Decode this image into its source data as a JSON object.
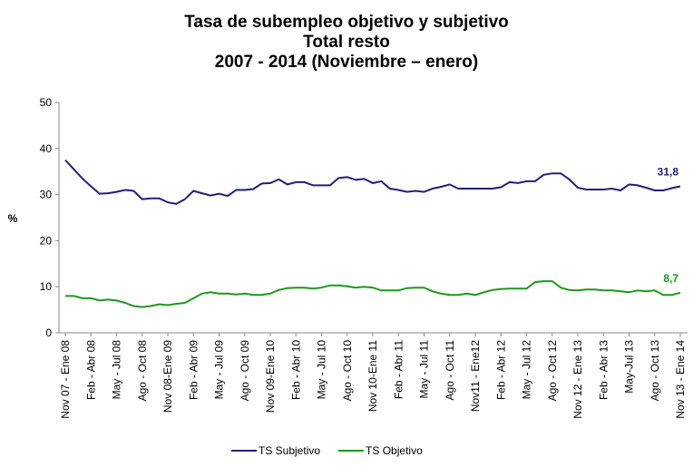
{
  "chart_data": {
    "type": "line",
    "title": "Tasa de subempleo objetivo y subjetivo",
    "subtitle": "Total resto",
    "period": "2007 - 2014 (Noviembre – enero)",
    "y_label": "%",
    "categories": [
      "Nov 07 - Ene 08",
      null,
      null,
      "Feb - Abr 08",
      null,
      null,
      "May - Jul 08",
      null,
      null,
      "Ago - Oct 08",
      null,
      null,
      "Nov 08-Ene 09",
      null,
      null,
      "Feb - Abr 09",
      null,
      null,
      "May - Jul 09",
      null,
      null,
      "Ago - Oct 09",
      null,
      null,
      "Nov 09-Ene 10",
      null,
      null,
      "Feb - Abr 10",
      null,
      null,
      "May - Jul 10",
      null,
      null,
      "Ago - Oct 10",
      null,
      null,
      "Nov 10-Ene 11",
      null,
      null,
      "Feb - Abr 11",
      null,
      null,
      "May - Jul 11",
      null,
      null,
      "Ago - Oct 11",
      null,
      null,
      "Nov11 - Ene12",
      null,
      null,
      "Feb - Abr 12",
      null,
      null,
      "May - Jul 12",
      null,
      null,
      "Ago - Oct 12",
      null,
      null,
      "Nov 12 - Ene 13",
      null,
      null,
      "Feb - Abr 13",
      null,
      null,
      "May-Jul 13",
      null,
      null,
      "Ago - Oct 13",
      null,
      null,
      "Nov 13 - Ene 14"
    ],
    "series": [
      {
        "name": "TS Subjetivo",
        "color": "#1f1f7a",
        "values": [
          37.5,
          35.5,
          33.5,
          31.8,
          30.2,
          30.3,
          30.6,
          31.0,
          30.8,
          29.0,
          29.2,
          29.2,
          28.3,
          28.0,
          29.0,
          30.8,
          30.3,
          29.8,
          30.2,
          29.7,
          31.0,
          31.0,
          31.2,
          32.4,
          32.5,
          33.3,
          32.2,
          32.7,
          32.7,
          32.0,
          32.0,
          32.0,
          33.6,
          33.8,
          33.2,
          33.4,
          32.5,
          32.9,
          31.3,
          31.0,
          30.6,
          30.8,
          30.6,
          31.3,
          31.7,
          32.2,
          31.3,
          31.3,
          31.3,
          31.3,
          31.3,
          31.6,
          32.7,
          32.5,
          32.9,
          32.9,
          34.3,
          34.6,
          34.6,
          33.3,
          31.5,
          31.1,
          31.1,
          31.1,
          31.3,
          30.9,
          32.2,
          32.0,
          31.5,
          30.9,
          30.9,
          31.4,
          31.8
        ],
        "value_labels": [
          null,
          null,
          null,
          null,
          null,
          null,
          null,
          null,
          null,
          null,
          null,
          null,
          null,
          null,
          null,
          null,
          null,
          null,
          null,
          null,
          null,
          null,
          null,
          null,
          null,
          null,
          null,
          null,
          null,
          null,
          null,
          null,
          null,
          null,
          null,
          null,
          null,
          null,
          null,
          null,
          null,
          null,
          null,
          null,
          null,
          null,
          null,
          null,
          null,
          null,
          null,
          null,
          null,
          null,
          null,
          null,
          null,
          null,
          null,
          null,
          null,
          null,
          null,
          null,
          null,
          null,
          null,
          null,
          null,
          null,
          null,
          null,
          "31,8"
        ]
      },
      {
        "name": "TS Objetivo",
        "color": "#1a9a1a",
        "values": [
          8.0,
          8.0,
          7.5,
          7.5,
          7.0,
          7.2,
          7.0,
          6.5,
          5.8,
          5.6,
          5.8,
          6.2,
          6.0,
          6.3,
          6.5,
          7.5,
          8.5,
          8.8,
          8.5,
          8.5,
          8.3,
          8.5,
          8.2,
          8.2,
          8.5,
          9.3,
          9.7,
          9.8,
          9.8,
          9.6,
          9.8,
          10.3,
          10.3,
          10.1,
          9.8,
          10.0,
          9.8,
          9.2,
          9.2,
          9.2,
          9.7,
          9.8,
          9.8,
          9.0,
          8.5,
          8.2,
          8.2,
          8.5,
          8.2,
          8.8,
          9.3,
          9.5,
          9.6,
          9.6,
          9.6,
          11.0,
          11.2,
          11.2,
          9.8,
          9.3,
          9.2,
          9.4,
          9.4,
          9.2,
          9.2,
          9.0,
          8.8,
          9.2,
          9.0,
          9.2,
          8.2,
          8.2,
          8.7
        ],
        "value_labels": [
          null,
          null,
          null,
          null,
          null,
          null,
          null,
          null,
          null,
          null,
          null,
          null,
          null,
          null,
          null,
          null,
          null,
          null,
          null,
          null,
          null,
          null,
          null,
          null,
          null,
          null,
          null,
          null,
          null,
          null,
          null,
          null,
          null,
          null,
          null,
          null,
          null,
          null,
          null,
          null,
          null,
          null,
          null,
          null,
          null,
          null,
          null,
          null,
          null,
          null,
          null,
          null,
          null,
          null,
          null,
          null,
          null,
          null,
          null,
          null,
          null,
          null,
          null,
          null,
          null,
          null,
          null,
          null,
          null,
          null,
          null,
          null,
          "8,7"
        ]
      }
    ],
    "ylim": [
      0,
      50
    ],
    "yticks": [
      0,
      10,
      20,
      30,
      40,
      50
    ],
    "grid": false,
    "legend": "bottom"
  }
}
